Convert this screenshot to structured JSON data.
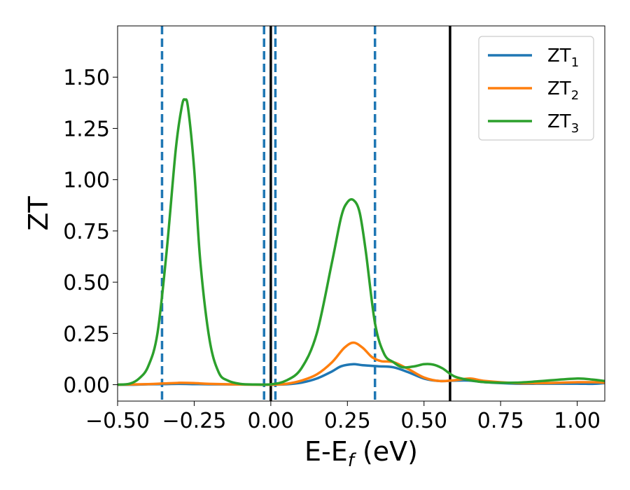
{
  "chart_data": {
    "type": "line",
    "xlabel_main": "E-E",
    "xlabel_sub": "f",
    "xlabel_unit": " (eV)",
    "ylabel": "ZT",
    "xlim": [
      -0.5,
      1.09
    ],
    "ylim": [
      -0.08,
      1.75
    ],
    "xticks": [
      -0.5,
      -0.25,
      0.0,
      0.25,
      0.5,
      0.75,
      1.0
    ],
    "xtick_labels": [
      "−0.50",
      "−0.25",
      "0.00",
      "0.25",
      "0.50",
      "0.75",
      "1.00"
    ],
    "yticks": [
      0.0,
      0.25,
      0.5,
      0.75,
      1.0,
      1.25,
      1.5
    ],
    "ytick_labels": [
      "0.00",
      "0.25",
      "0.50",
      "0.75",
      "1.00",
      "1.25",
      "1.50"
    ],
    "legend_position": "top-right",
    "vlines_dashed": [
      -0.355,
      -0.022,
      0.015,
      0.34
    ],
    "vlines_dashed_color": "#1f77b4",
    "vlines_solid": [
      0.0,
      0.585
    ],
    "vlines_solid_color": "#000000",
    "series": [
      {
        "name": "ZT",
        "name_sub": "1",
        "color": "#1f77b4",
        "x": [
          -0.5,
          -0.45,
          -0.4,
          -0.35,
          -0.3,
          -0.25,
          -0.2,
          -0.1,
          0.0,
          0.05,
          0.1,
          0.15,
          0.2,
          0.23,
          0.27,
          0.3,
          0.35,
          0.4,
          0.45,
          0.5,
          0.55,
          0.6,
          0.65,
          0.7,
          0.8,
          0.9,
          1.0,
          1.05,
          1.09
        ],
        "y": [
          0.0,
          0.0,
          0.002,
          0.003,
          0.004,
          0.003,
          0.002,
          0.001,
          0.0,
          0.002,
          0.01,
          0.03,
          0.065,
          0.09,
          0.1,
          0.095,
          0.09,
          0.085,
          0.06,
          0.03,
          0.018,
          0.02,
          0.02,
          0.012,
          0.005,
          0.005,
          0.005,
          0.004,
          0.008
        ]
      },
      {
        "name": "ZT",
        "name_sub": "2",
        "color": "#ff7f0e",
        "x": [
          -0.5,
          -0.4,
          -0.35,
          -0.3,
          -0.25,
          -0.2,
          -0.1,
          0.0,
          0.05,
          0.1,
          0.15,
          0.2,
          0.24,
          0.27,
          0.3,
          0.33,
          0.36,
          0.4,
          0.45,
          0.5,
          0.55,
          0.6,
          0.65,
          0.7,
          0.8,
          0.9,
          1.0,
          1.05,
          1.09
        ],
        "y": [
          0.0,
          0.003,
          0.006,
          0.009,
          0.008,
          0.004,
          0.001,
          0.0,
          0.004,
          0.02,
          0.05,
          0.11,
          0.18,
          0.205,
          0.18,
          0.135,
          0.115,
          0.11,
          0.075,
          0.035,
          0.018,
          0.022,
          0.03,
          0.018,
          0.008,
          0.008,
          0.012,
          0.012,
          0.01
        ]
      },
      {
        "name": "ZT",
        "name_sub": "3",
        "color": "#2ca02c",
        "x": [
          -0.5,
          -0.46,
          -0.43,
          -0.4,
          -0.37,
          -0.34,
          -0.31,
          -0.29,
          -0.28,
          -0.27,
          -0.25,
          -0.23,
          -0.2,
          -0.17,
          -0.14,
          -0.1,
          -0.05,
          0.0,
          0.05,
          0.1,
          0.15,
          0.2,
          0.23,
          0.25,
          0.27,
          0.29,
          0.31,
          0.34,
          0.37,
          0.4,
          0.43,
          0.47,
          0.5,
          0.53,
          0.56,
          0.6,
          0.65,
          0.7,
          0.8,
          0.9,
          1.0,
          1.05,
          1.09
        ],
        "y": [
          0.0,
          0.005,
          0.03,
          0.09,
          0.25,
          0.65,
          1.15,
          1.36,
          1.39,
          1.35,
          1.05,
          0.6,
          0.22,
          0.06,
          0.02,
          0.004,
          0.001,
          0.002,
          0.02,
          0.08,
          0.25,
          0.6,
          0.82,
          0.89,
          0.9,
          0.84,
          0.65,
          0.3,
          0.15,
          0.11,
          0.085,
          0.09,
          0.1,
          0.098,
          0.08,
          0.04,
          0.022,
          0.012,
          0.01,
          0.02,
          0.03,
          0.025,
          0.018
        ]
      }
    ]
  }
}
